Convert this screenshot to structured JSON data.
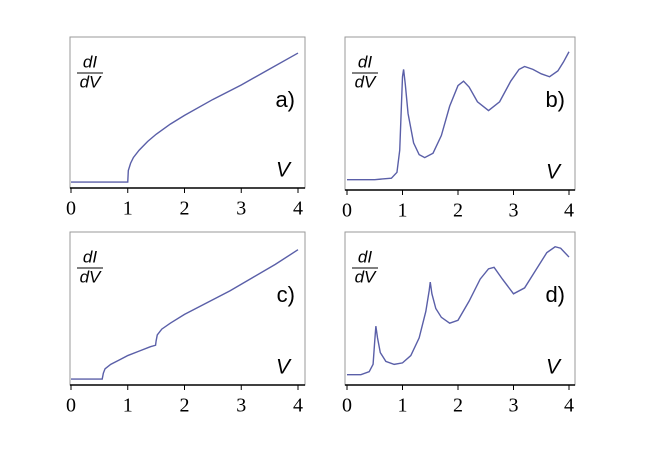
{
  "chart_data": [
    {
      "type": "line",
      "annotation": "a)",
      "ylabel_numerator": "dI",
      "ylabel_denominator": "dV",
      "xlabel": "V",
      "xlim": [
        0,
        4
      ],
      "xticks": [
        0,
        1,
        2,
        3,
        4
      ],
      "ylim": [
        0,
        1
      ],
      "color": "#5a5fa8",
      "x": [
        0,
        0.5,
        0.99,
        1.0,
        1.01,
        1.05,
        1.1,
        1.2,
        1.35,
        1.5,
        1.75,
        2,
        2.5,
        3,
        3.5,
        4
      ],
      "values": [
        0.02,
        0.02,
        0.02,
        0.02,
        0.1,
        0.15,
        0.19,
        0.24,
        0.3,
        0.35,
        0.42,
        0.48,
        0.59,
        0.69,
        0.8,
        0.91
      ]
    },
    {
      "type": "line",
      "annotation": "b)",
      "ylabel_numerator": "dI",
      "ylabel_denominator": "dV",
      "xlabel": "V",
      "xlim": [
        0,
        4
      ],
      "xticks": [
        0,
        1,
        2,
        3,
        4
      ],
      "ylim": [
        0,
        1
      ],
      "color": "#5a5fa8",
      "x": [
        0,
        0.5,
        0.8,
        0.9,
        0.95,
        0.98,
        1.0,
        1.02,
        1.05,
        1.1,
        1.2,
        1.3,
        1.4,
        1.55,
        1.7,
        1.85,
        2.0,
        2.1,
        2.2,
        2.35,
        2.55,
        2.75,
        2.95,
        3.1,
        3.2,
        3.35,
        3.5,
        3.65,
        3.8,
        3.9,
        4.0
      ],
      "values": [
        0.05,
        0.05,
        0.06,
        0.1,
        0.25,
        0.55,
        0.75,
        0.8,
        0.7,
        0.5,
        0.3,
        0.22,
        0.2,
        0.23,
        0.35,
        0.55,
        0.69,
        0.72,
        0.68,
        0.58,
        0.52,
        0.58,
        0.72,
        0.8,
        0.82,
        0.8,
        0.77,
        0.75,
        0.79,
        0.85,
        0.92
      ]
    },
    {
      "type": "line",
      "annotation": "c)",
      "ylabel_numerator": "dI",
      "ylabel_denominator": "dV",
      "xlabel": "V",
      "xlim": [
        0,
        4
      ],
      "xticks": [
        0,
        1,
        2,
        3,
        4
      ],
      "ylim": [
        0,
        1
      ],
      "color": "#5a5fa8",
      "x": [
        0,
        0.3,
        0.54,
        0.55,
        0.57,
        0.6,
        0.7,
        0.85,
        1.0,
        1.2,
        1.4,
        1.49,
        1.5,
        1.52,
        1.6,
        1.75,
        2.0,
        2.4,
        2.8,
        3.2,
        3.6,
        4.0
      ],
      "values": [
        0.02,
        0.02,
        0.02,
        0.02,
        0.06,
        0.09,
        0.12,
        0.15,
        0.18,
        0.21,
        0.24,
        0.25,
        0.28,
        0.32,
        0.36,
        0.4,
        0.46,
        0.54,
        0.62,
        0.71,
        0.8,
        0.9
      ]
    },
    {
      "type": "line",
      "annotation": "d)",
      "ylabel_numerator": "dI",
      "ylabel_denominator": "dV",
      "xlabel": "V",
      "xlim": [
        0,
        4
      ],
      "xticks": [
        0,
        1,
        2,
        3,
        4
      ],
      "ylim": [
        0,
        1
      ],
      "color": "#5a5fa8",
      "x": [
        0,
        0.25,
        0.4,
        0.47,
        0.5,
        0.52,
        0.55,
        0.6,
        0.7,
        0.85,
        1.0,
        1.15,
        1.3,
        1.42,
        1.48,
        1.5,
        1.53,
        1.6,
        1.7,
        1.85,
        2.0,
        2.2,
        2.4,
        2.55,
        2.65,
        2.8,
        3.0,
        3.2,
        3.4,
        3.6,
        3.75,
        3.85,
        4.0
      ],
      "values": [
        0.05,
        0.05,
        0.07,
        0.12,
        0.28,
        0.38,
        0.3,
        0.2,
        0.14,
        0.12,
        0.13,
        0.18,
        0.3,
        0.48,
        0.62,
        0.68,
        0.6,
        0.5,
        0.44,
        0.4,
        0.42,
        0.55,
        0.7,
        0.77,
        0.78,
        0.7,
        0.6,
        0.64,
        0.76,
        0.88,
        0.92,
        0.91,
        0.85
      ]
    }
  ]
}
